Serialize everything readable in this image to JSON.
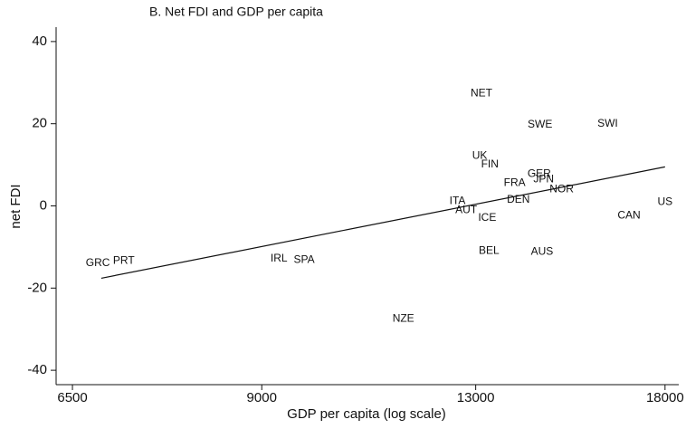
{
  "chart_data": {
    "type": "scatter",
    "title": "B. Net FDI and GDP per capita",
    "x_label": "GDP per capita (log scale)",
    "y_label": "net FDI",
    "x_scale": "log",
    "xlim": [
      6320,
      18430
    ],
    "xticks": [
      6500,
      9000,
      13000,
      18000
    ],
    "ylim": [
      -43.5,
      43.5
    ],
    "yticks": [
      -40,
      -20,
      0,
      20,
      40
    ],
    "color": "#111111",
    "points": {
      "labels": [
        "GRC",
        "PRT",
        "IRL",
        "SPA",
        "NZE",
        "NET",
        "UK",
        "FIN",
        "ITA",
        "AUT",
        "ICE",
        "BEL",
        "SWE",
        "SWI",
        "GER",
        "JPN",
        "FRA",
        "DEN",
        "NOR",
        "AUS",
        "CAN",
        "US"
      ],
      "x": [
        6790,
        7100,
        9270,
        9680,
        11480,
        13130,
        13090,
        13320,
        12600,
        12790,
        13260,
        13300,
        14520,
        16310,
        14500,
        14610,
        13900,
        13990,
        15070,
        14570,
        16920,
        18000
      ],
      "y": [
        -13.9,
        -13.4,
        -12.8,
        -13.2,
        -27.5,
        27.3,
        12.1,
        10.1,
        1.1,
        -1.1,
        -2.9,
        -11.0,
        19.8,
        20.0,
        7.7,
        6.4,
        5.5,
        1.5,
        4.0,
        -11.2,
        -2.4,
        0.9
      ]
    },
    "fit_line": {
      "x": [
        6830,
        18000
      ],
      "y": [
        -17.6,
        9.5
      ]
    }
  }
}
